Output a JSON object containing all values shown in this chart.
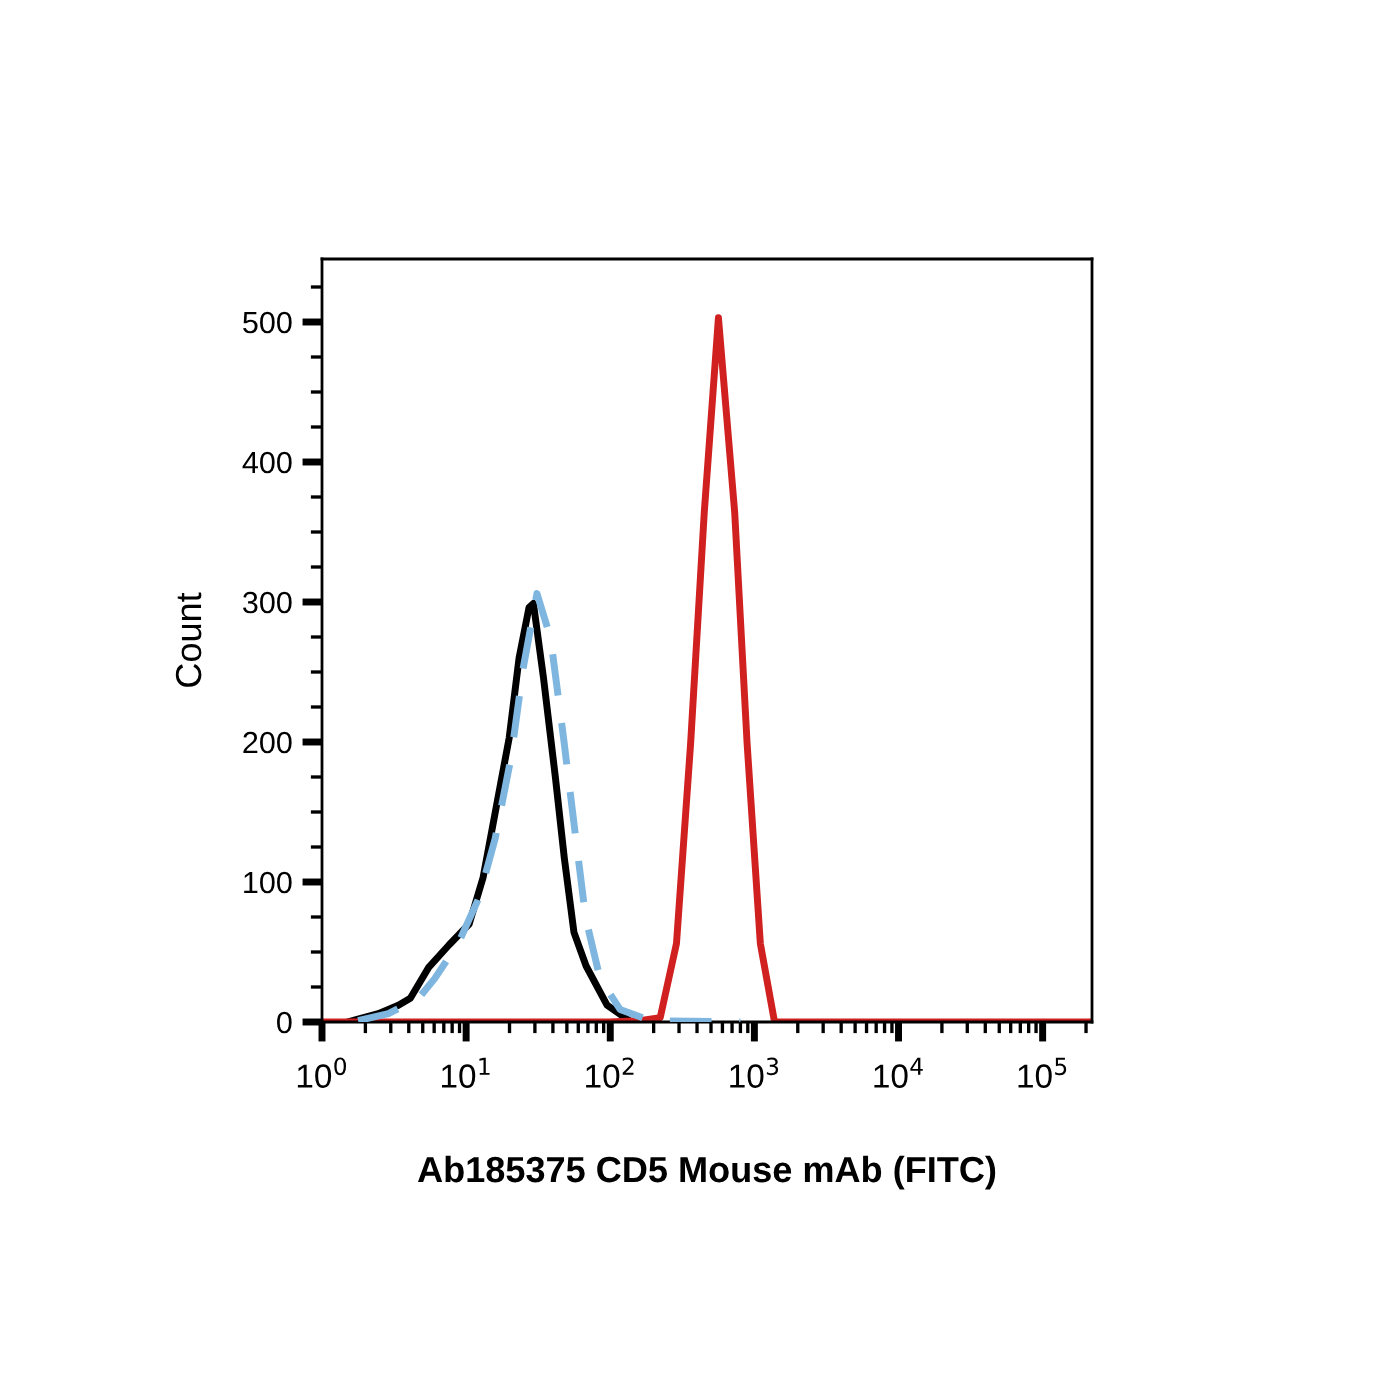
{
  "chart_data": {
    "type": "line",
    "xlabel": "Ab185375 CD5 Mouse mAb (FITC)",
    "ylabel": "Count",
    "log": "x",
    "xlim": [
      1,
      220000
    ],
    "xticks": [
      {
        "value": 1,
        "label": "10$^{0}$"
      },
      {
        "value": 10,
        "label": "10$^{1}$"
      },
      {
        "value": 100,
        "label": "10$^{2}$"
      },
      {
        "value": 1000,
        "label": "10$^{3}$"
      },
      {
        "value": 10000,
        "label": "10$^{4}$"
      },
      {
        "value": 100000,
        "label": "10$^{5}$"
      }
    ],
    "ylim": [
      0,
      545
    ],
    "yticks": [
      0,
      100,
      200,
      300,
      400,
      500
    ],
    "grid": false,
    "marker": "none",
    "series": [
      {
        "color": "#7eb6e0",
        "line_style": "dashed",
        "x": [
          1.78,
          2.89,
          4.68,
          6.05,
          8.9,
          12.3,
          15.9,
          20.5,
          24.9,
          31,
          38.6,
          47.4,
          57.7,
          67.6,
          85,
          117,
          189,
          800
        ],
        "values": [
          1,
          6,
          17,
          31,
          57,
          89,
          131,
          189,
          253,
          306,
          274,
          203,
          131,
          74,
          31,
          9,
          1,
          0
        ]
      },
      {
        "color": "#000000",
        "line_style": "solid",
        "x": [
          1.5,
          2.46,
          3.39,
          4.1,
          5.5,
          7.6,
          10.5,
          13.1,
          16.9,
          19.9,
          23.3,
          27.3,
          29.3,
          34.4,
          41.7,
          48,
          56,
          68,
          95,
          140
        ],
        "values": [
          0,
          6,
          12,
          17,
          39,
          55,
          70,
          103,
          164,
          203,
          260,
          296,
          299,
          246,
          174,
          117,
          64,
          40,
          12,
          0
        ]
      },
      {
        "color": "#d02020",
        "line_style": "solid",
        "x": [
          1,
          99,
          160,
          222,
          288,
          361,
          449,
          563,
          730,
          890,
          1100,
          1380,
          220000
        ],
        "values": [
          0,
          0,
          1,
          3,
          56,
          199,
          364,
          503,
          364,
          199,
          56,
          0,
          0
        ]
      }
    ]
  }
}
